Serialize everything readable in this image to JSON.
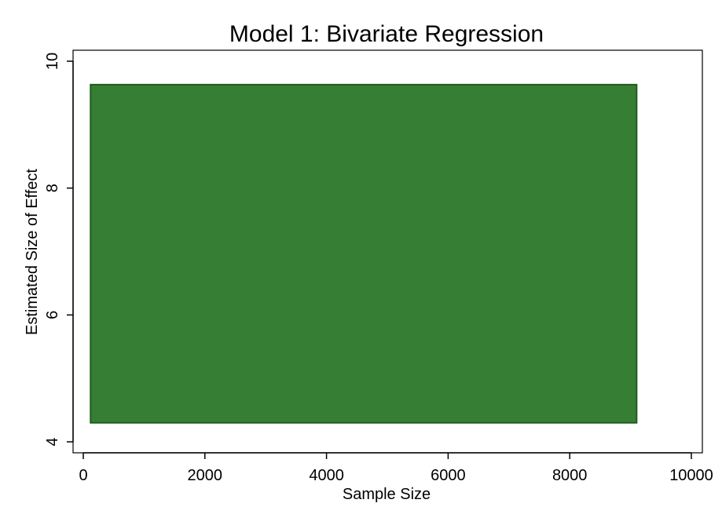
{
  "chart_data": {
    "type": "area",
    "title": "Model 1: Bivariate Regression",
    "xlabel": "Sample Size",
    "ylabel": "Estimated Size of Effect",
    "xlim": [
      0,
      10000
    ],
    "ylim": [
      4,
      10
    ],
    "xticks": [
      0,
      2000,
      4000,
      6000,
      8000,
      10000
    ],
    "yticks": [
      4,
      6,
      8,
      10
    ],
    "grid": false,
    "series": [
      {
        "x": [
          120,
          9100
        ],
        "y_low": [
          4.3,
          4.3
        ],
        "y_high": [
          9.63,
          9.63
        ],
        "fill_color": "#367E33",
        "edge_color": "#1E5E1C"
      }
    ]
  }
}
